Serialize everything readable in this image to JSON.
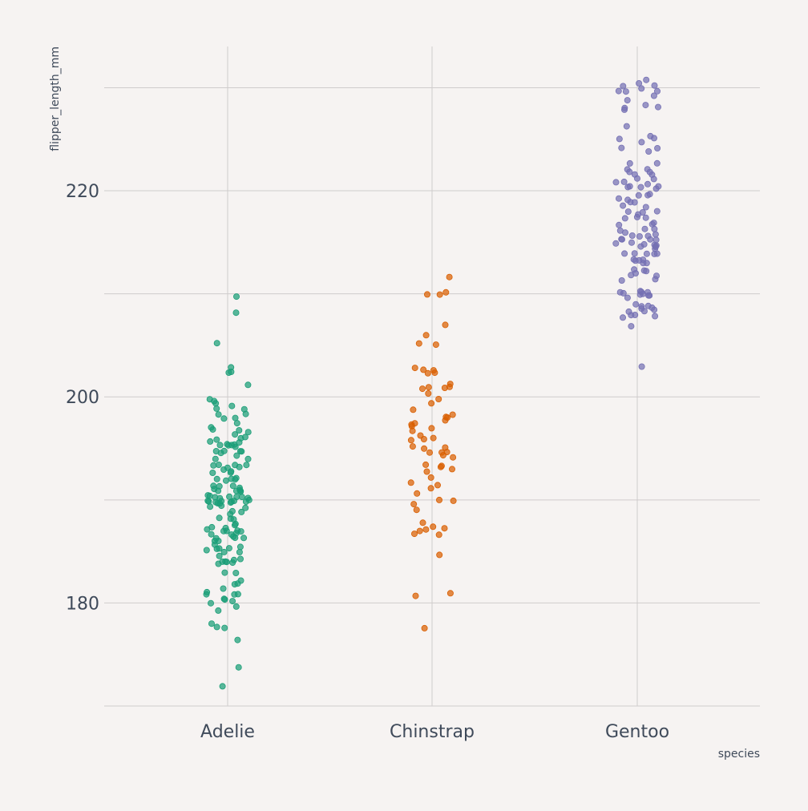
{
  "chart_data": {
    "type": "scatter",
    "subtype": "strip-jitter",
    "title": "",
    "xlabel": "species",
    "ylabel": "flipper_length_mm",
    "categories": [
      "Adelie",
      "Chinstrap",
      "Gentoo"
    ],
    "ylim": [
      170,
      234
    ],
    "yticks": [
      180,
      200,
      220
    ],
    "grid": true,
    "legend": "none",
    "colors": {
      "background": "#f6f3f2",
      "grid": "#cfcccc",
      "text": "#3f4a5a",
      "Adelie": "#1b9e77",
      "Chinstrap": "#d95f02",
      "Gentoo": "#7570b3"
    },
    "series": [
      {
        "category": "Adelie",
        "values": [
          181,
          186,
          195,
          193,
          190,
          181,
          195,
          193,
          190,
          186,
          180,
          182,
          191,
          198,
          185,
          195,
          197,
          184,
          194,
          174,
          180,
          189,
          185,
          180,
          187,
          183,
          187,
          172,
          180,
          178,
          178,
          188,
          184,
          195,
          196,
          190,
          180,
          181,
          184,
          182,
          195,
          186,
          196,
          185,
          190,
          182,
          179,
          190,
          191,
          186,
          188,
          190,
          200,
          187,
          191,
          186,
          193,
          181,
          194,
          185,
          195,
          185,
          192,
          184,
          192,
          195,
          188,
          190,
          198,
          190,
          190,
          196,
          197,
          190,
          195,
          191,
          184,
          187,
          195,
          189,
          196,
          187,
          193,
          191,
          194,
          190,
          189,
          189,
          190,
          202,
          205,
          185,
          186,
          187,
          208,
          190,
          196,
          178,
          192,
          192,
          203,
          183,
          190,
          193,
          184,
          199,
          190,
          181,
          197,
          198,
          191,
          193,
          197,
          191,
          196,
          188,
          199,
          189,
          189,
          187,
          198,
          176,
          202,
          186,
          199,
          191,
          195,
          191,
          210,
          190,
          197,
          193,
          199,
          187,
          190,
          191,
          200,
          185,
          193,
          193,
          187,
          188,
          190,
          192,
          185,
          190,
          184,
          195,
          193,
          187,
          201
        ]
      },
      {
        "category": "Chinstrap",
        "values": [
          192,
          196,
          193,
          188,
          197,
          198,
          178,
          197,
          195,
          198,
          193,
          194,
          185,
          201,
          190,
          201,
          197,
          181,
          190,
          195,
          181,
          191,
          187,
          193,
          195,
          197,
          200,
          200,
          191,
          205,
          187,
          201,
          187,
          203,
          195,
          199,
          195,
          210,
          192,
          205,
          210,
          187,
          196,
          196,
          196,
          201,
          190,
          212,
          187,
          198,
          199,
          201,
          193,
          203,
          187,
          197,
          191,
          203,
          202,
          194,
          206,
          189,
          195,
          207,
          202,
          193,
          210,
          198
        ]
      },
      {
        "category": "Gentoo",
        "values": [
          211,
          230,
          210,
          218,
          215,
          210,
          211,
          219,
          209,
          215,
          214,
          216,
          214,
          213,
          210,
          217,
          210,
          221,
          209,
          222,
          218,
          215,
          213,
          215,
          215,
          215,
          216,
          215,
          210,
          220,
          222,
          209,
          207,
          230,
          220,
          220,
          213,
          219,
          208,
          208,
          208,
          225,
          210,
          216,
          222,
          217,
          210,
          225,
          213,
          215,
          210,
          220,
          210,
          225,
          217,
          220,
          208,
          220,
          208,
          224,
          208,
          221,
          214,
          231,
          219,
          230,
          214,
          229,
          220,
          223,
          216,
          221,
          221,
          217,
          216,
          230,
          209,
          220,
          215,
          223,
          212,
          221,
          212,
          224,
          212,
          228,
          218,
          218,
          212,
          230,
          218,
          228,
          212,
          224,
          214,
          226,
          216,
          222,
          203,
          225,
          219,
          228,
          215,
          228,
          216,
          215,
          210,
          219,
          208,
          209,
          216,
          229,
          213,
          230,
          217,
          230,
          217,
          222,
          214,
          215,
          222,
          212,
          213
        ]
      }
    ]
  }
}
